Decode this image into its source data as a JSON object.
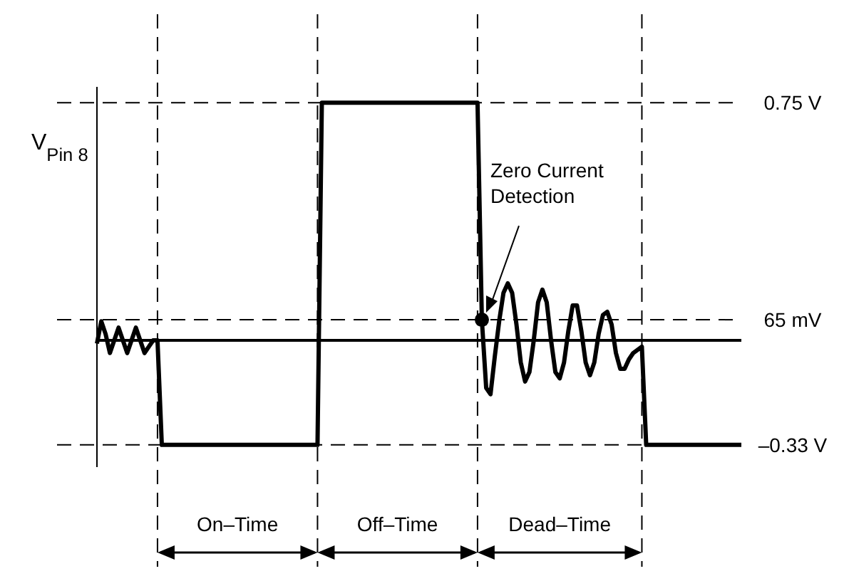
{
  "chart_data": {
    "type": "line",
    "ylabel": "V$_{Pin 8}$",
    "ylim": [
      -0.4,
      0.8
    ],
    "yticks": [
      {
        "value": 0.75,
        "label": "0.75 V"
      },
      {
        "value": -0.33,
        "label": "–0.33 V"
      }
    ],
    "ref_lines": [
      {
        "axis": "y",
        "value": 0.065,
        "label": "65 mV",
        "line_style": "dashed"
      }
    ],
    "tick_labels": "y",
    "grid": "y",
    "line_style": "solid",
    "categories": [
      null,
      null,
      null,
      null,
      null,
      null,
      null,
      null,
      null,
      null,
      null,
      null,
      null,
      null,
      null,
      null,
      null,
      null,
      null,
      null,
      null,
      null,
      null,
      null,
      null,
      null,
      null,
      null,
      null,
      null,
      null,
      null,
      null,
      null,
      null,
      null,
      null,
      null,
      null,
      null,
      null,
      null,
      null,
      null,
      null,
      null,
      null,
      null,
      null,
      null,
      null,
      null,
      null,
      null,
      null,
      null,
      null,
      null,
      null,
      null,
      null,
      null,
      null,
      null,
      null,
      null,
      null,
      null,
      null,
      null,
      null,
      null,
      null,
      null,
      null,
      null,
      null,
      null,
      null,
      null,
      null,
      null,
      null,
      null,
      null,
      null,
      null,
      null,
      null,
      null,
      null,
      null,
      null,
      null,
      null,
      null,
      null,
      null,
      null,
      null,
      null,
      null,
      null,
      null,
      null,
      null,
      null,
      null,
      null,
      null,
      null,
      null,
      null,
      null,
      null,
      null,
      null,
      null,
      null,
      null,
      null,
      null,
      null,
      null,
      null,
      null,
      null,
      null,
      null,
      null,
      null,
      null,
      null,
      null,
      null,
      null,
      null,
      null,
      null,
      null,
      null,
      null,
      null,
      null,
      null,
      null,
      null,
      null,
      null,
      null
    ],
    "series": [
      {
        "color": "#000000",
        "values": [
          -0.01,
          0.06,
          0.02,
          -0.04,
          0,
          0.04,
          0,
          -0.04,
          0,
          0.04,
          0,
          -0.04,
          -0.02,
          0,
          0,
          -0.33,
          -0.33,
          -0.33,
          -0.33,
          -0.33,
          -0.33,
          -0.33,
          -0.33,
          -0.33,
          -0.33,
          -0.33,
          -0.33,
          -0.33,
          -0.33,
          -0.33,
          -0.33,
          -0.33,
          -0.33,
          -0.33,
          -0.33,
          -0.33,
          -0.33,
          -0.33,
          -0.33,
          -0.33,
          -0.33,
          -0.33,
          -0.33,
          -0.33,
          -0.33,
          -0.33,
          -0.33,
          -0.33,
          -0.33,
          -0.33,
          -0.33,
          -0.33,
          0.75,
          0.75,
          0.75,
          0.75,
          0.75,
          0.75,
          0.75,
          0.75,
          0.75,
          0.75,
          0.75,
          0.75,
          0.75,
          0.75,
          0.75,
          0.75,
          0.75,
          0.75,
          0.75,
          0.75,
          0.75,
          0.75,
          0.75,
          0.75,
          0.75,
          0.75,
          0.75,
          0.75,
          0.75,
          0.75,
          0.75,
          0.75,
          0.75,
          0.75,
          0.75,
          0.75,
          0.75,
          0.065,
          -0.15,
          -0.17,
          -0.05,
          0.06,
          0.15,
          0.18,
          0.15,
          0.05,
          -0.07,
          -0.13,
          -0.1,
          0,
          0.12,
          0.16,
          0.12,
          0,
          -0.1,
          -0.12,
          -0.07,
          0.03,
          0.11,
          0.11,
          0.03,
          -0.07,
          -0.11,
          -0.07,
          0.02,
          0.08,
          0.09,
          0.05,
          -0.04,
          -0.09,
          -0.09,
          -0.06,
          -0.04,
          -0.03,
          -0.02,
          -0.33,
          -0.33,
          -0.33,
          -0.33,
          -0.33,
          -0.33,
          -0.33,
          -0.33,
          -0.33,
          -0.33,
          -0.33,
          -0.33,
          -0.33,
          -0.33,
          -0.33,
          -0.33,
          -0.33,
          -0.33,
          -0.33,
          -0.33,
          -0.33,
          -0.33,
          -0.33
        ]
      },
      {
        "type": "scatter",
        "color": "#000000",
        "values": [
          null,
          null,
          null,
          null,
          null,
          null,
          null,
          null,
          null,
          null,
          null,
          null,
          null,
          null,
          null,
          null,
          null,
          null,
          null,
          null,
          null,
          null,
          null,
          null,
          null,
          null,
          null,
          null,
          null,
          null,
          null,
          null,
          null,
          null,
          null,
          null,
          null,
          null,
          null,
          null,
          null,
          null,
          null,
          null,
          null,
          null,
          null,
          null,
          null,
          null,
          null,
          null,
          null,
          null,
          null,
          null,
          null,
          null,
          null,
          null,
          null,
          null,
          null,
          null,
          null,
          null,
          null,
          null,
          null,
          null,
          null,
          null,
          null,
          null,
          null,
          null,
          null,
          null,
          null,
          null,
          null,
          null,
          null,
          null,
          null,
          null,
          null,
          null,
          null,
          0.065,
          null,
          null,
          null,
          null,
          null,
          null,
          null,
          null,
          null,
          null,
          null,
          null,
          null,
          null,
          null,
          null,
          null,
          null,
          null,
          null,
          null,
          null,
          null,
          null,
          null,
          null,
          null,
          null,
          null,
          null,
          null,
          null,
          null,
          null,
          null,
          null,
          null,
          null,
          null,
          null,
          null,
          null,
          null,
          null,
          null,
          null,
          null,
          null,
          null,
          null,
          null,
          null,
          null,
          null,
          null,
          null,
          null,
          null,
          null,
          null
        ]
      }
    ],
    "annotations": [
      "Zero Current Detection",
      "On–Time",
      "Off–Time",
      "Dead–Time"
    ]
  }
}
